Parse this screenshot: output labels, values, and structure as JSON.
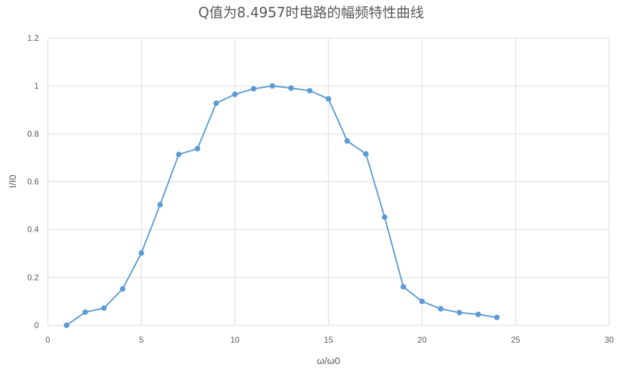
{
  "chart_data": {
    "type": "scatter",
    "title": "Q值为8.4957时电路的幅频特性曲线",
    "xlabel": "ω/ω0",
    "ylabel": "I/I0",
    "xlim": [
      0,
      30
    ],
    "ylim": [
      0,
      1.2
    ],
    "x_ticks": [
      "0",
      "5",
      "10",
      "15",
      "20",
      "25",
      "30"
    ],
    "y_ticks": [
      "0",
      "0.2",
      "0.4",
      "0.6",
      "0.8",
      "1",
      "1.2"
    ],
    "grid": true,
    "line_color": "#5B9BD5",
    "series": [
      {
        "x": [
          1,
          2,
          3,
          4,
          5,
          6,
          7,
          8,
          9,
          10,
          11,
          12,
          13,
          14,
          15,
          16,
          17,
          18,
          19,
          20,
          21,
          22,
          23,
          24
        ],
        "y": [
          0.0,
          0.055,
          0.072,
          0.152,
          0.302,
          0.504,
          0.714,
          0.738,
          0.928,
          0.965,
          0.988,
          1.0,
          0.991,
          0.98,
          0.946,
          0.77,
          0.716,
          0.452,
          0.161,
          0.1,
          0.069,
          0.053,
          0.046,
          0.033
        ]
      }
    ]
  }
}
